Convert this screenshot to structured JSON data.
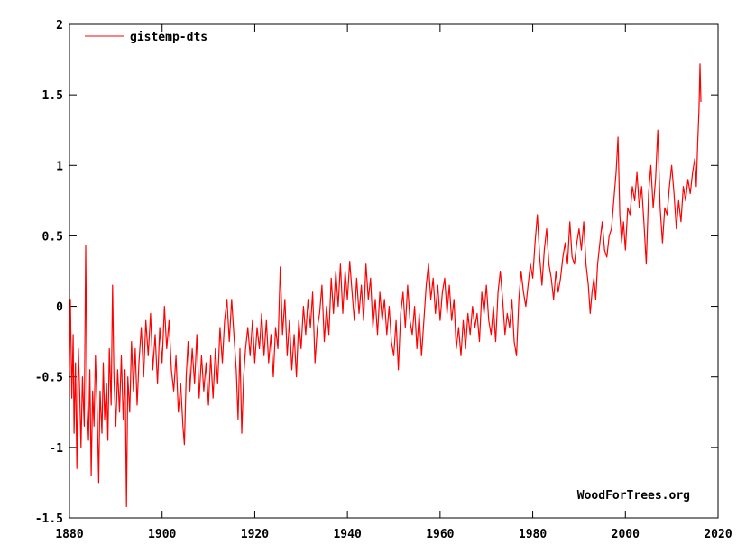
{
  "chart_data": {
    "type": "line",
    "title": "",
    "xlabel": "",
    "ylabel": "",
    "xlim": [
      1880,
      2020
    ],
    "ylim": [
      -1.5,
      2
    ],
    "x_ticks": [
      "1880",
      "1900",
      "1920",
      "1940",
      "1960",
      "1980",
      "2000",
      "2020"
    ],
    "y_ticks": [
      "2",
      "1.5",
      "1",
      "0.5",
      "0",
      "-0.5",
      "-1",
      "-1.5"
    ],
    "grid": false,
    "legend_position": "top-left",
    "credit": "WoodForTrees.org",
    "series": [
      {
        "name": "gistemp-dts",
        "color": "#ff0000",
        "points": [
          [
            1880.0,
            -0.45
          ],
          [
            1880.2,
            0.05
          ],
          [
            1880.5,
            -0.65
          ],
          [
            1880.8,
            -0.2
          ],
          [
            1881.0,
            -0.9
          ],
          [
            1881.3,
            -0.4
          ],
          [
            1881.6,
            -1.15
          ],
          [
            1881.9,
            -0.3
          ],
          [
            1882.2,
            -0.6
          ],
          [
            1882.5,
            -1.0
          ],
          [
            1882.8,
            -0.5
          ],
          [
            1883.2,
            -0.85
          ],
          [
            1883.5,
            0.43
          ],
          [
            1883.8,
            -0.7
          ],
          [
            1884.1,
            -0.95
          ],
          [
            1884.4,
            -0.45
          ],
          [
            1884.7,
            -1.2
          ],
          [
            1885.0,
            -0.6
          ],
          [
            1885.3,
            -0.85
          ],
          [
            1885.6,
            -0.35
          ],
          [
            1886.0,
            -0.75
          ],
          [
            1886.3,
            -1.25
          ],
          [
            1886.6,
            -0.6
          ],
          [
            1887.0,
            -0.9
          ],
          [
            1887.3,
            -0.4
          ],
          [
            1887.6,
            -0.8
          ],
          [
            1888.0,
            -0.55
          ],
          [
            1888.3,
            -0.95
          ],
          [
            1888.6,
            -0.3
          ],
          [
            1889.0,
            -0.7
          ],
          [
            1889.3,
            0.15
          ],
          [
            1889.6,
            -0.5
          ],
          [
            1890.0,
            -0.85
          ],
          [
            1890.4,
            -0.45
          ],
          [
            1890.8,
            -0.75
          ],
          [
            1891.2,
            -0.35
          ],
          [
            1891.6,
            -0.8
          ],
          [
            1892.0,
            -0.45
          ],
          [
            1892.3,
            -1.42
          ],
          [
            1892.6,
            -0.5
          ],
          [
            1893.0,
            -0.75
          ],
          [
            1893.4,
            -0.25
          ],
          [
            1893.8,
            -0.6
          ],
          [
            1894.2,
            -0.3
          ],
          [
            1894.6,
            -0.7
          ],
          [
            1895.0,
            -0.4
          ],
          [
            1895.5,
            -0.15
          ],
          [
            1896.0,
            -0.5
          ],
          [
            1896.5,
            -0.1
          ],
          [
            1897.0,
            -0.35
          ],
          [
            1897.5,
            -0.05
          ],
          [
            1898.0,
            -0.45
          ],
          [
            1898.5,
            -0.2
          ],
          [
            1899.0,
            -0.55
          ],
          [
            1899.5,
            -0.15
          ],
          [
            1900.0,
            -0.4
          ],
          [
            1900.5,
            0.0
          ],
          [
            1901.0,
            -0.3
          ],
          [
            1901.5,
            -0.1
          ],
          [
            1902.0,
            -0.45
          ],
          [
            1902.5,
            -0.6
          ],
          [
            1903.0,
            -0.35
          ],
          [
            1903.5,
            -0.75
          ],
          [
            1904.0,
            -0.55
          ],
          [
            1904.5,
            -0.85
          ],
          [
            1904.8,
            -0.98
          ],
          [
            1905.2,
            -0.5
          ],
          [
            1905.6,
            -0.25
          ],
          [
            1906.0,
            -0.6
          ],
          [
            1906.5,
            -0.3
          ],
          [
            1907.0,
            -0.55
          ],
          [
            1907.5,
            -0.2
          ],
          [
            1908.0,
            -0.65
          ],
          [
            1908.5,
            -0.35
          ],
          [
            1909.0,
            -0.6
          ],
          [
            1909.5,
            -0.4
          ],
          [
            1910.0,
            -0.7
          ],
          [
            1910.5,
            -0.35
          ],
          [
            1911.0,
            -0.65
          ],
          [
            1911.5,
            -0.3
          ],
          [
            1912.0,
            -0.55
          ],
          [
            1912.5,
            -0.15
          ],
          [
            1913.0,
            -0.4
          ],
          [
            1913.5,
            -0.1
          ],
          [
            1914.0,
            0.05
          ],
          [
            1914.5,
            -0.25
          ],
          [
            1915.0,
            0.05
          ],
          [
            1915.5,
            -0.2
          ],
          [
            1916.0,
            -0.45
          ],
          [
            1916.4,
            -0.8
          ],
          [
            1916.8,
            -0.3
          ],
          [
            1917.2,
            -0.9
          ],
          [
            1917.6,
            -0.5
          ],
          [
            1918.0,
            -0.3
          ],
          [
            1918.5,
            -0.15
          ],
          [
            1919.0,
            -0.35
          ],
          [
            1919.5,
            -0.1
          ],
          [
            1920.0,
            -0.4
          ],
          [
            1920.5,
            -0.15
          ],
          [
            1921.0,
            -0.3
          ],
          [
            1921.5,
            -0.05
          ],
          [
            1922.0,
            -0.35
          ],
          [
            1922.5,
            -0.1
          ],
          [
            1923.0,
            -0.4
          ],
          [
            1923.5,
            -0.2
          ],
          [
            1924.0,
            -0.5
          ],
          [
            1924.5,
            -0.15
          ],
          [
            1925.0,
            -0.3
          ],
          [
            1925.5,
            0.28
          ],
          [
            1926.0,
            -0.2
          ],
          [
            1926.5,
            0.05
          ],
          [
            1927.0,
            -0.35
          ],
          [
            1927.5,
            -0.1
          ],
          [
            1928.0,
            -0.45
          ],
          [
            1928.5,
            -0.2
          ],
          [
            1929.0,
            -0.5
          ],
          [
            1929.5,
            -0.1
          ],
          [
            1930.0,
            -0.3
          ],
          [
            1930.5,
            0.0
          ],
          [
            1931.0,
            -0.2
          ],
          [
            1931.5,
            0.05
          ],
          [
            1932.0,
            -0.15
          ],
          [
            1932.5,
            0.1
          ],
          [
            1933.0,
            -0.4
          ],
          [
            1933.5,
            -0.15
          ],
          [
            1934.0,
            -0.05
          ],
          [
            1934.5,
            0.15
          ],
          [
            1935.0,
            -0.25
          ],
          [
            1935.5,
            0.0
          ],
          [
            1936.0,
            -0.2
          ],
          [
            1936.5,
            0.2
          ],
          [
            1937.0,
            -0.05
          ],
          [
            1937.5,
            0.25
          ],
          [
            1938.0,
            0.0
          ],
          [
            1938.5,
            0.3
          ],
          [
            1939.0,
            -0.05
          ],
          [
            1939.5,
            0.25
          ],
          [
            1940.0,
            0.05
          ],
          [
            1940.5,
            0.32
          ],
          [
            1941.0,
            0.1
          ],
          [
            1941.5,
            -0.1
          ],
          [
            1942.0,
            0.2
          ],
          [
            1942.5,
            -0.05
          ],
          [
            1943.0,
            0.15
          ],
          [
            1943.5,
            -0.1
          ],
          [
            1944.0,
            0.3
          ],
          [
            1944.5,
            0.05
          ],
          [
            1945.0,
            0.2
          ],
          [
            1945.5,
            -0.15
          ],
          [
            1946.0,
            0.05
          ],
          [
            1946.5,
            -0.2
          ],
          [
            1947.0,
            0.1
          ],
          [
            1947.5,
            -0.1
          ],
          [
            1948.0,
            0.05
          ],
          [
            1948.5,
            -0.2
          ],
          [
            1949.0,
            0.0
          ],
          [
            1949.5,
            -0.25
          ],
          [
            1950.0,
            -0.35
          ],
          [
            1950.5,
            -0.1
          ],
          [
            1951.0,
            -0.45
          ],
          [
            1951.5,
            -0.05
          ],
          [
            1952.0,
            0.1
          ],
          [
            1952.5,
            -0.15
          ],
          [
            1953.0,
            0.15
          ],
          [
            1953.5,
            -0.1
          ],
          [
            1954.0,
            -0.2
          ],
          [
            1954.5,
            0.0
          ],
          [
            1955.0,
            -0.3
          ],
          [
            1955.5,
            -0.05
          ],
          [
            1956.0,
            -0.35
          ],
          [
            1956.5,
            -0.1
          ],
          [
            1957.0,
            0.15
          ],
          [
            1957.5,
            0.3
          ],
          [
            1958.0,
            0.05
          ],
          [
            1958.5,
            0.2
          ],
          [
            1959.0,
            -0.05
          ],
          [
            1959.5,
            0.15
          ],
          [
            1960.0,
            -0.1
          ],
          [
            1960.5,
            0.1
          ],
          [
            1961.0,
            0.2
          ],
          [
            1961.5,
            -0.05
          ],
          [
            1962.0,
            0.15
          ],
          [
            1962.5,
            -0.1
          ],
          [
            1963.0,
            0.05
          ],
          [
            1963.5,
            -0.3
          ],
          [
            1964.0,
            -0.15
          ],
          [
            1964.5,
            -0.35
          ],
          [
            1965.0,
            -0.1
          ],
          [
            1965.5,
            -0.3
          ],
          [
            1966.0,
            -0.05
          ],
          [
            1966.5,
            -0.2
          ],
          [
            1967.0,
            0.0
          ],
          [
            1967.5,
            -0.15
          ],
          [
            1968.0,
            -0.05
          ],
          [
            1968.5,
            -0.25
          ],
          [
            1969.0,
            0.1
          ],
          [
            1969.5,
            -0.05
          ],
          [
            1970.0,
            0.15
          ],
          [
            1970.5,
            -0.1
          ],
          [
            1971.0,
            -0.2
          ],
          [
            1971.5,
            0.0
          ],
          [
            1972.0,
            -0.25
          ],
          [
            1972.5,
            0.1
          ],
          [
            1973.0,
            0.25
          ],
          [
            1973.5,
            0.05
          ],
          [
            1974.0,
            -0.2
          ],
          [
            1974.5,
            -0.05
          ],
          [
            1975.0,
            -0.15
          ],
          [
            1975.5,
            0.05
          ],
          [
            1976.0,
            -0.25
          ],
          [
            1976.5,
            -0.35
          ],
          [
            1977.0,
            0.05
          ],
          [
            1977.5,
            0.25
          ],
          [
            1978.0,
            0.1
          ],
          [
            1978.5,
            0.0
          ],
          [
            1979.0,
            0.15
          ],
          [
            1979.5,
            0.3
          ],
          [
            1980.0,
            0.2
          ],
          [
            1980.5,
            0.45
          ],
          [
            1981.0,
            0.65
          ],
          [
            1981.5,
            0.35
          ],
          [
            1982.0,
            0.15
          ],
          [
            1982.5,
            0.4
          ],
          [
            1983.0,
            0.55
          ],
          [
            1983.5,
            0.3
          ],
          [
            1984.0,
            0.2
          ],
          [
            1984.5,
            0.05
          ],
          [
            1985.0,
            0.25
          ],
          [
            1985.5,
            0.1
          ],
          [
            1986.0,
            0.2
          ],
          [
            1986.5,
            0.35
          ],
          [
            1987.0,
            0.45
          ],
          [
            1987.5,
            0.3
          ],
          [
            1988.0,
            0.6
          ],
          [
            1988.5,
            0.35
          ],
          [
            1989.0,
            0.3
          ],
          [
            1989.5,
            0.45
          ],
          [
            1990.0,
            0.55
          ],
          [
            1990.5,
            0.4
          ],
          [
            1991.0,
            0.6
          ],
          [
            1991.5,
            0.3
          ],
          [
            1992.0,
            0.15
          ],
          [
            1992.4,
            -0.05
          ],
          [
            1992.8,
            0.1
          ],
          [
            1993.2,
            0.2
          ],
          [
            1993.6,
            0.05
          ],
          [
            1994.0,
            0.3
          ],
          [
            1994.5,
            0.45
          ],
          [
            1995.0,
            0.6
          ],
          [
            1995.5,
            0.4
          ],
          [
            1996.0,
            0.35
          ],
          [
            1996.5,
            0.5
          ],
          [
            1997.0,
            0.55
          ],
          [
            1997.5,
            0.75
          ],
          [
            1998.0,
            0.95
          ],
          [
            1998.4,
            1.2
          ],
          [
            1998.8,
            0.65
          ],
          [
            1999.2,
            0.45
          ],
          [
            1999.6,
            0.6
          ],
          [
            2000.0,
            0.4
          ],
          [
            2000.5,
            0.7
          ],
          [
            2001.0,
            0.65
          ],
          [
            2001.5,
            0.85
          ],
          [
            2002.0,
            0.75
          ],
          [
            2002.5,
            0.95
          ],
          [
            2003.0,
            0.7
          ],
          [
            2003.5,
            0.85
          ],
          [
            2004.0,
            0.6
          ],
          [
            2004.5,
            0.3
          ],
          [
            2005.0,
            0.8
          ],
          [
            2005.5,
            1.0
          ],
          [
            2006.0,
            0.7
          ],
          [
            2006.5,
            0.9
          ],
          [
            2007.0,
            1.25
          ],
          [
            2007.5,
            0.7
          ],
          [
            2008.0,
            0.45
          ],
          [
            2008.5,
            0.7
          ],
          [
            2009.0,
            0.65
          ],
          [
            2009.5,
            0.85
          ],
          [
            2010.0,
            1.0
          ],
          [
            2010.5,
            0.8
          ],
          [
            2011.0,
            0.55
          ],
          [
            2011.5,
            0.75
          ],
          [
            2012.0,
            0.6
          ],
          [
            2012.5,
            0.85
          ],
          [
            2013.0,
            0.75
          ],
          [
            2013.5,
            0.9
          ],
          [
            2014.0,
            0.8
          ],
          [
            2014.5,
            0.95
          ],
          [
            2015.0,
            1.05
          ],
          [
            2015.3,
            0.85
          ],
          [
            2015.6,
            1.15
          ],
          [
            2015.9,
            1.4
          ],
          [
            2016.1,
            1.72
          ],
          [
            2016.3,
            1.45
          ]
        ]
      }
    ]
  }
}
